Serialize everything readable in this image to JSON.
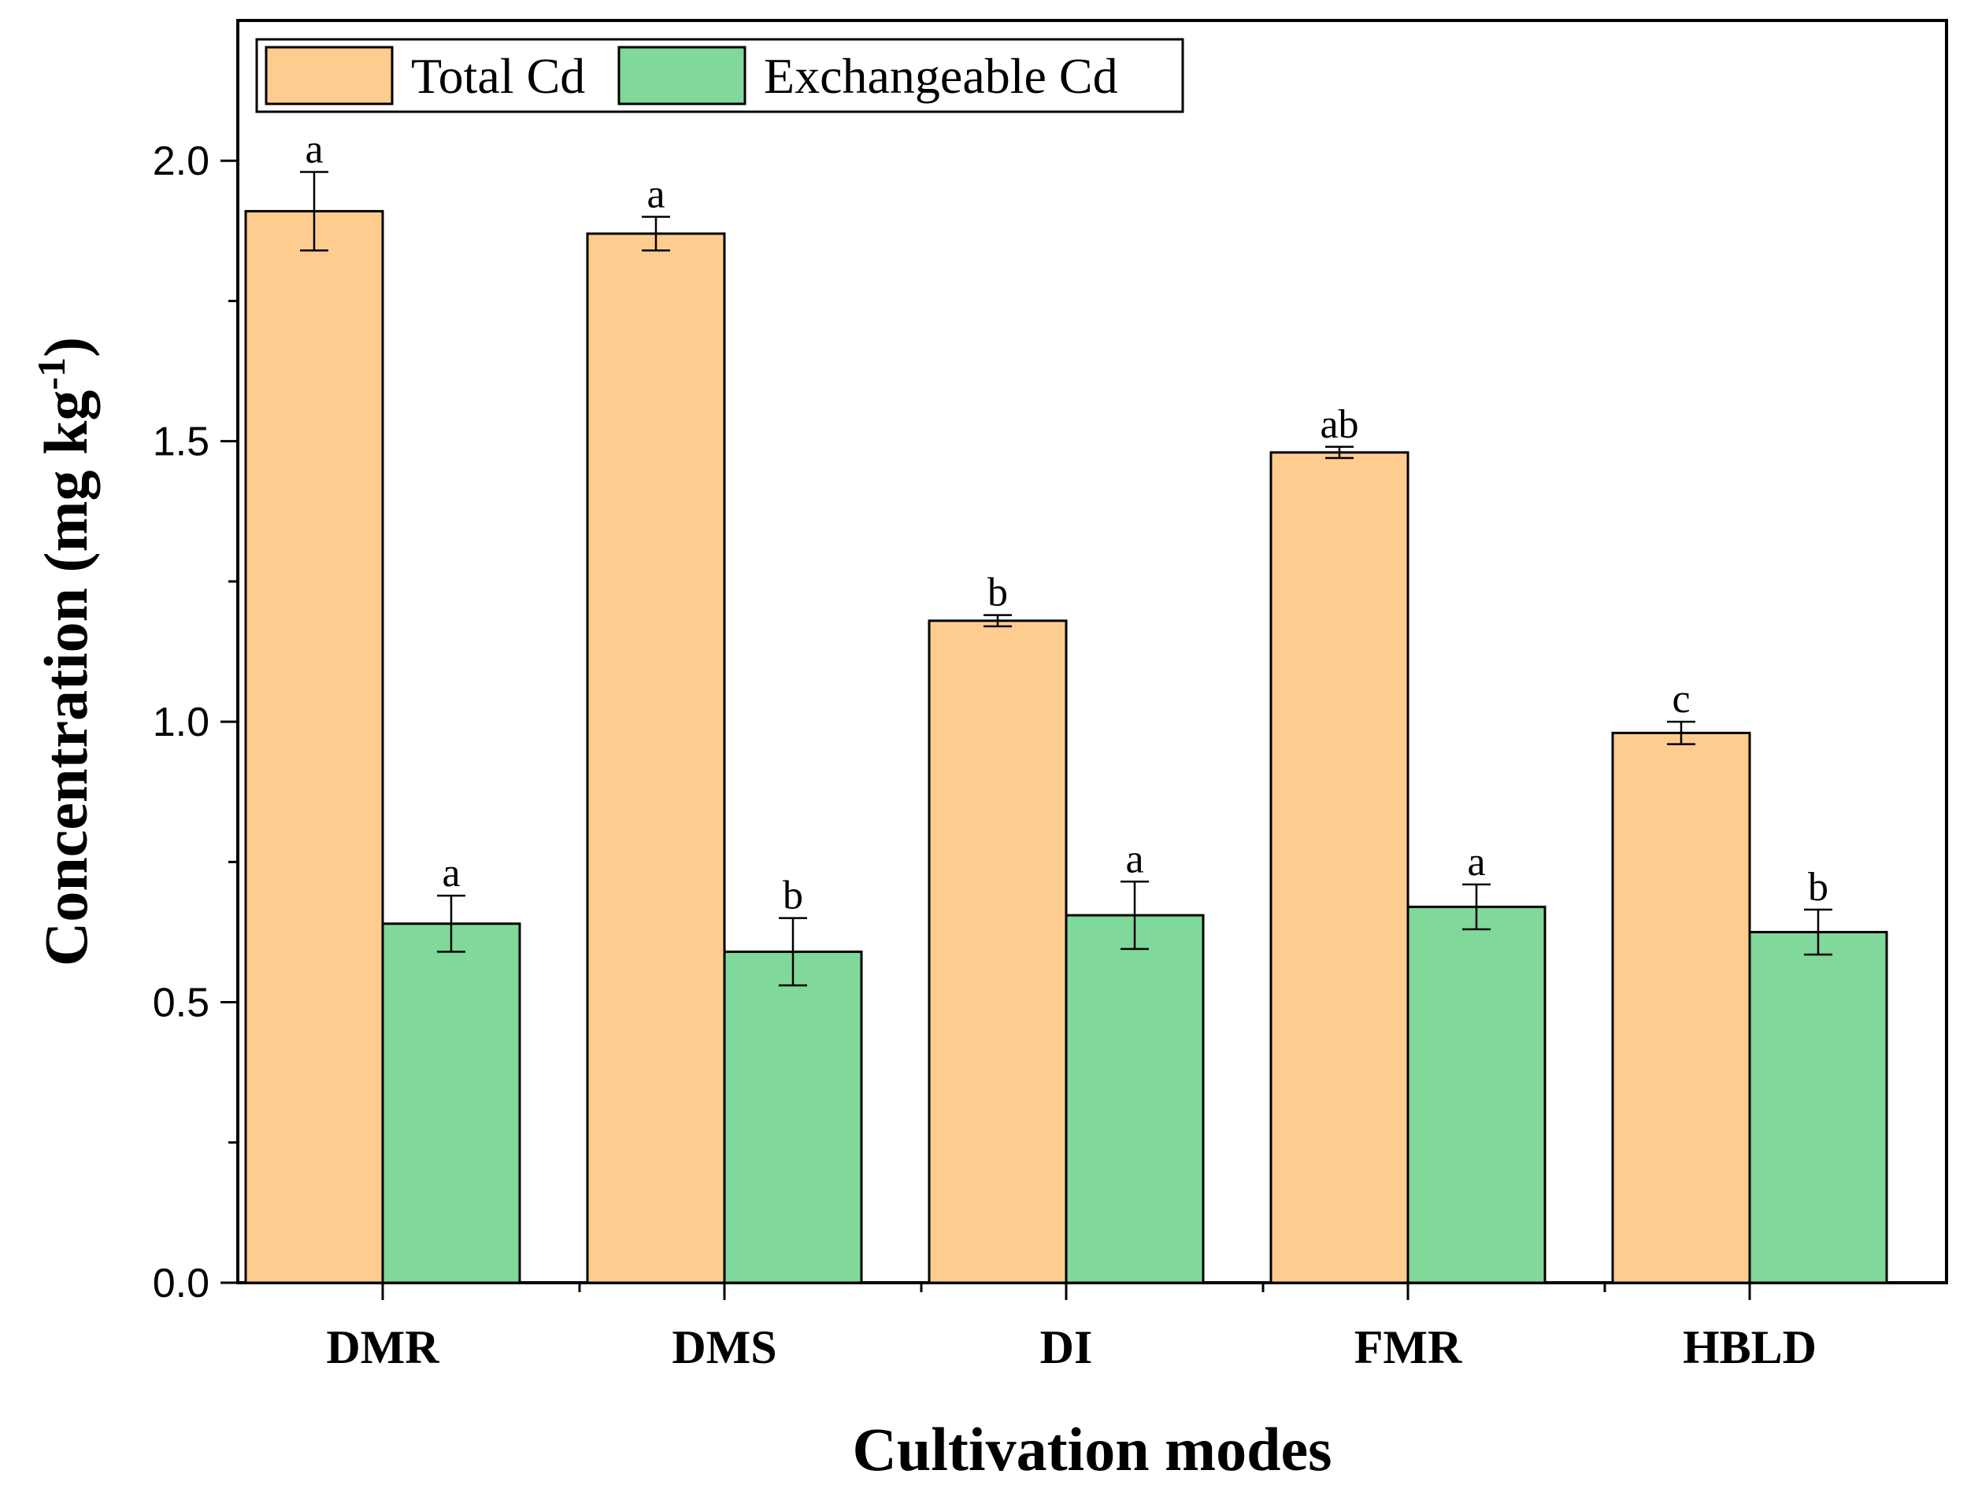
{
  "chart_data": {
    "type": "bar",
    "categories": [
      "DMR",
      "DMS",
      "DI",
      "FMR",
      "HBLD"
    ],
    "series": [
      {
        "name": "Total Cd",
        "color": "#FFCC8F",
        "values": [
          1.91,
          1.87,
          1.18,
          1.48,
          0.98
        ],
        "errors": [
          0.07,
          0.03,
          0.01,
          0.01,
          0.02
        ],
        "letters": [
          "a",
          "a",
          "b",
          "ab",
          "c"
        ]
      },
      {
        "name": "Exchangeable Cd",
        "color": "#80D89A",
        "values": [
          0.64,
          0.59,
          0.655,
          0.67,
          0.625
        ],
        "errors": [
          0.05,
          0.06,
          0.06,
          0.04,
          0.04
        ],
        "letters": [
          "a",
          "b",
          "a",
          "a",
          "b"
        ]
      }
    ],
    "xlabel": "Cultivation modes",
    "ylabel": "Concentration (mg kg-1)",
    "ylabel_main": "Concentration (mg kg",
    "ylabel_sup": "-1",
    "ylabel_close": ")",
    "ylim": [
      0,
      2.25
    ],
    "yticks": [
      0.0,
      0.5,
      1.0,
      1.5,
      2.0
    ],
    "ytick_labels": [
      "0.0",
      "0.5",
      "1.0",
      "1.5",
      "2.0"
    ],
    "grid": false,
    "legend_position": "top-left"
  }
}
